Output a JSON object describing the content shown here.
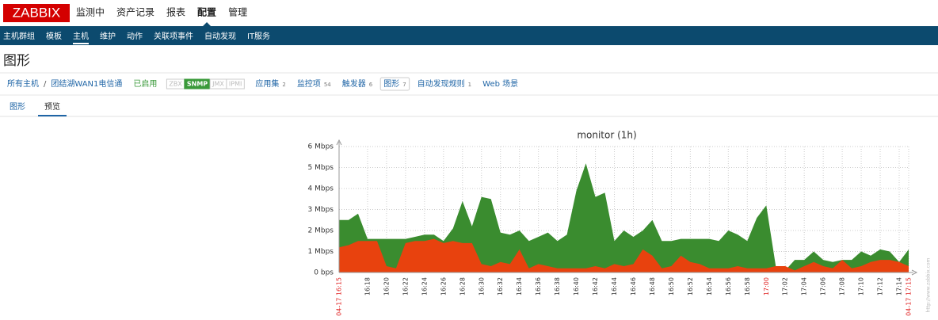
{
  "header": {
    "logo": "ZABBIX",
    "menu": [
      "监测中",
      "资产记录",
      "报表",
      "配置",
      "管理"
    ],
    "active": 3
  },
  "subnav": {
    "items": [
      "主机群组",
      "模板",
      "主机",
      "维护",
      "动作",
      "关联项事件",
      "自动发现",
      "IT服务"
    ],
    "active": 2
  },
  "page_title": "图形",
  "host_bar": {
    "crumbs": [
      "所有主机",
      "/",
      "团结湖WAN1电信通"
    ],
    "status": "已启用",
    "badges": [
      {
        "text": "ZBX",
        "on": false
      },
      {
        "text": "SNMP",
        "on": true
      },
      {
        "text": "JMX",
        "on": false
      },
      {
        "text": "IPMI",
        "on": false
      }
    ],
    "links": [
      {
        "text": "应用集",
        "count": "2"
      },
      {
        "text": "监控项",
        "count": "54"
      },
      {
        "text": "触发器",
        "count": "6"
      },
      {
        "text": "图形",
        "count": "7",
        "active": true
      },
      {
        "text": "自动发现规则",
        "count": "1"
      },
      {
        "text": "Web 场景"
      }
    ]
  },
  "tabs": {
    "items": [
      "图形",
      "预览"
    ],
    "active": 1
  },
  "chart_data": {
    "type": "area",
    "title": "monitor (1h)",
    "watermark": "http://www.zabbix.com",
    "xlim": [
      "04-17 16:15",
      "04-17 17:15"
    ],
    "x": [
      "16:15",
      "16:16",
      "16:17",
      "16:18",
      "16:19",
      "16:20",
      "16:21",
      "16:22",
      "16:23",
      "16:24",
      "16:25",
      "16:26",
      "16:27",
      "16:28",
      "16:29",
      "16:30",
      "16:31",
      "16:32",
      "16:33",
      "16:34",
      "16:35",
      "16:36",
      "16:37",
      "16:38",
      "16:39",
      "16:40",
      "16:41",
      "16:42",
      "16:43",
      "16:44",
      "16:45",
      "16:46",
      "16:47",
      "16:48",
      "16:49",
      "16:50",
      "16:51",
      "16:52",
      "16:53",
      "16:54",
      "16:55",
      "16:56",
      "16:57",
      "16:58",
      "16:59",
      "17:00",
      "17:01",
      "17:02",
      "17:03",
      "17:04",
      "17:05",
      "17:06",
      "17:07",
      "17:08",
      "17:09",
      "17:10",
      "17:11",
      "17:12",
      "17:13",
      "17:14",
      "17:15"
    ],
    "series": [
      {
        "color": "#3a8c2f",
        "values": [
          2.5,
          2.5,
          2.8,
          1.6,
          1.6,
          1.6,
          1.6,
          1.6,
          1.7,
          1.8,
          1.8,
          1.5,
          2.1,
          3.4,
          2.2,
          3.6,
          3.5,
          1.9,
          1.8,
          2.0,
          1.5,
          1.7,
          1.9,
          1.5,
          1.8,
          3.9,
          5.2,
          3.6,
          3.8,
          1.5,
          2.0,
          1.7,
          2.0,
          2.5,
          1.5,
          1.5,
          1.6,
          1.6,
          1.6,
          1.6,
          1.5,
          2.0,
          1.8,
          1.5,
          2.6,
          3.2,
          0.3,
          0.1,
          0.6,
          0.6,
          1.0,
          0.6,
          0.5,
          0.6,
          0.6,
          1.0,
          0.8,
          1.1,
          1.0,
          0.5,
          1.1
        ]
      },
      {
        "color": "#e8420e",
        "values": [
          1.2,
          1.3,
          1.5,
          1.5,
          1.5,
          0.3,
          0.2,
          1.4,
          1.5,
          1.5,
          1.6,
          1.4,
          1.5,
          1.4,
          1.4,
          0.4,
          0.3,
          0.5,
          0.4,
          1.1,
          0.2,
          0.4,
          0.3,
          0.2,
          0.2,
          0.2,
          0.2,
          0.3,
          0.2,
          0.4,
          0.3,
          0.4,
          1.1,
          0.8,
          0.2,
          0.3,
          0.8,
          0.5,
          0.4,
          0.2,
          0.2,
          0.2,
          0.3,
          0.2,
          0.2,
          0.2,
          0.3,
          0.3,
          0.1,
          0.3,
          0.5,
          0.3,
          0.2,
          0.6,
          0.2,
          0.3,
          0.5,
          0.6,
          0.6,
          0.5,
          0.3
        ]
      }
    ],
    "ylim": [
      0,
      6
    ],
    "yticks": [
      {
        "value": 0,
        "label": "0 bps"
      },
      {
        "value": 1,
        "label": "1 Mbps"
      },
      {
        "value": 2,
        "label": "2 Mbps"
      },
      {
        "value": 3,
        "label": "3 Mbps"
      },
      {
        "value": 4,
        "label": "4 Mbps"
      },
      {
        "value": 5,
        "label": "5 Mbps"
      },
      {
        "value": 6,
        "label": "6 Mbps"
      }
    ],
    "xticks": [
      {
        "label": "04-17 16:15",
        "highlight": true
      },
      {
        "label": "16:18"
      },
      {
        "label": "16:20"
      },
      {
        "label": "16:22"
      },
      {
        "label": "16:24"
      },
      {
        "label": "16:26"
      },
      {
        "label": "16:28"
      },
      {
        "label": "16:30"
      },
      {
        "label": "16:32"
      },
      {
        "label": "16:34"
      },
      {
        "label": "16:36"
      },
      {
        "label": "16:38"
      },
      {
        "label": "16:40"
      },
      {
        "label": "16:42"
      },
      {
        "label": "16:44"
      },
      {
        "label": "16:46"
      },
      {
        "label": "16:48"
      },
      {
        "label": "16:50"
      },
      {
        "label": "16:52"
      },
      {
        "label": "16:54"
      },
      {
        "label": "16:56"
      },
      {
        "label": "16:58"
      },
      {
        "label": "17:00",
        "highlight": true
      },
      {
        "label": "17:02"
      },
      {
        "label": "17:04"
      },
      {
        "label": "17:06"
      },
      {
        "label": "17:08"
      },
      {
        "label": "17:10"
      },
      {
        "label": "17:12"
      },
      {
        "label": "17:14"
      },
      {
        "label": "04-17 17:15",
        "highlight": true
      }
    ],
    "highlight_color": "#e02020",
    "grid": true
  }
}
